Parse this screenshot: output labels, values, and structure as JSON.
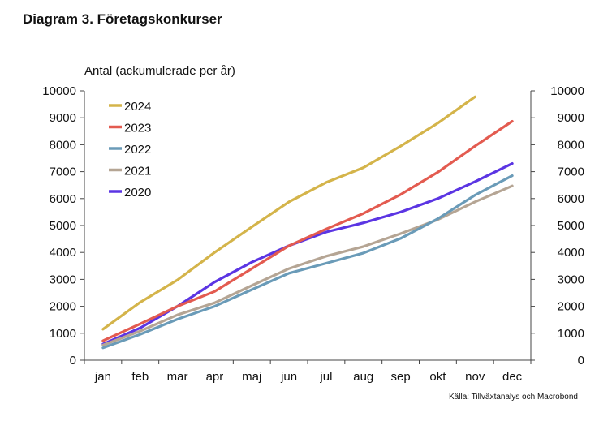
{
  "header": {
    "title": "Diagram 3. Företagskonkurser"
  },
  "footer": {
    "source": "Källa: Tillväxtanalys och Macrobond"
  },
  "chart_data": {
    "type": "line",
    "ylabel": "Antal (ackumulerade per år)",
    "xlabel": "",
    "categories": [
      "jan",
      "feb",
      "mar",
      "apr",
      "maj",
      "jun",
      "jul",
      "aug",
      "sep",
      "okt",
      "nov",
      "dec"
    ],
    "ylim": [
      0,
      10000
    ],
    "yticks": [
      0,
      1000,
      2000,
      3000,
      4000,
      5000,
      6000,
      7000,
      8000,
      9000,
      10000
    ],
    "secondary_yticks": [
      0,
      1000,
      2000,
      3000,
      4000,
      5000,
      6000,
      7000,
      8000,
      9000,
      10000
    ],
    "grid": false,
    "legend_position": "top-left",
    "series": [
      {
        "name": "2024",
        "color": "#d4b44a",
        "values": [
          1150,
          2150,
          2980,
          4000,
          4950,
          5880,
          6600,
          7150,
          7950,
          8800,
          9780,
          null
        ]
      },
      {
        "name": "2023",
        "color": "#e35b50",
        "values": [
          720,
          1350,
          2000,
          2550,
          3400,
          4250,
          4870,
          5450,
          6150,
          6980,
          7950,
          8870
        ]
      },
      {
        "name": "2022",
        "color": "#6a9bb8",
        "values": [
          460,
          960,
          1520,
          2000,
          2620,
          3230,
          3600,
          3980,
          4520,
          5250,
          6130,
          6850
        ]
      },
      {
        "name": "2021",
        "color": "#b5a594",
        "values": [
          560,
          1080,
          1680,
          2130,
          2770,
          3400,
          3860,
          4220,
          4700,
          5220,
          5880,
          6470
        ]
      },
      {
        "name": "2020",
        "color": "#5b35e3",
        "values": [
          600,
          1200,
          2000,
          2900,
          3640,
          4250,
          4760,
          5100,
          5500,
          6000,
          6630,
          7300
        ]
      }
    ]
  }
}
